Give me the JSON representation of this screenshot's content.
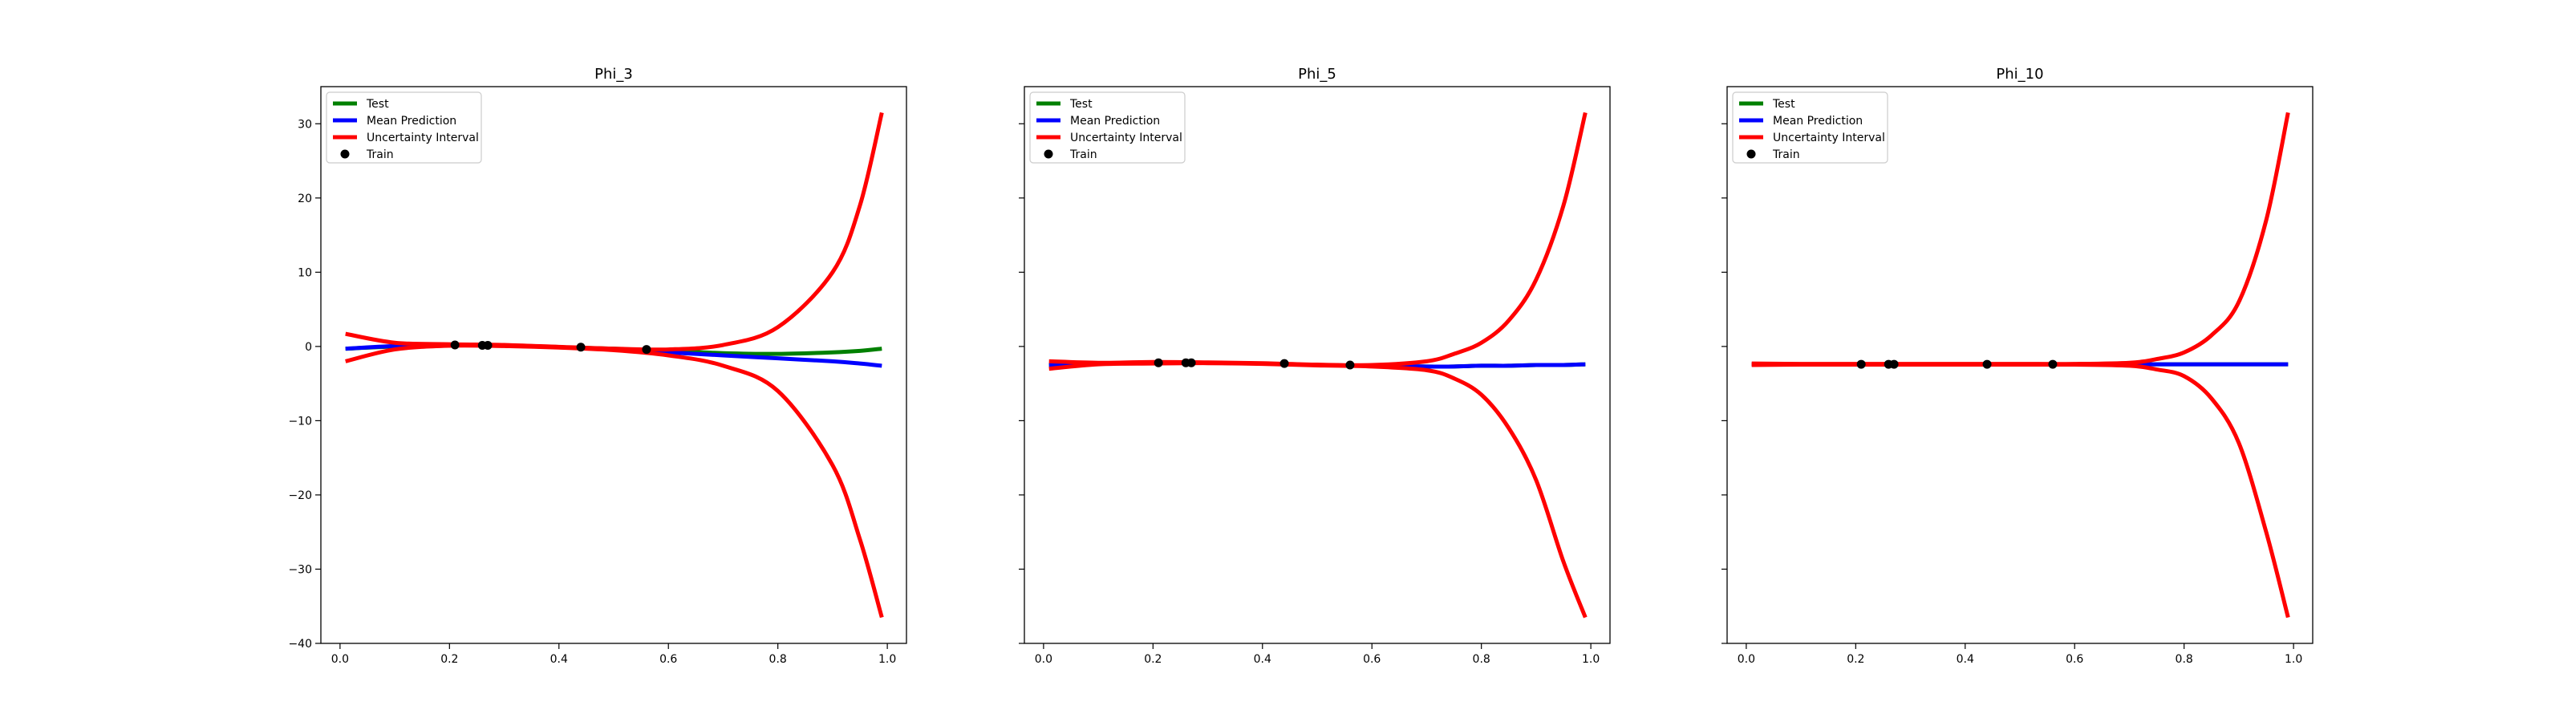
{
  "chart_data": [
    {
      "type": "line",
      "title": "Phi_3",
      "xlabel": "",
      "ylabel": "",
      "xlim": [
        -0.035,
        1.035
      ],
      "ylim": [
        -40,
        35
      ],
      "x_ticks": [
        0.0,
        0.2,
        0.4,
        0.6,
        0.8,
        1.0
      ],
      "y_ticks": [
        -40,
        -30,
        -20,
        -10,
        0,
        10,
        20,
        30
      ],
      "x_tick_labels": [
        "0.0",
        "0.2",
        "0.4",
        "0.6",
        "0.8",
        "1.0"
      ],
      "y_tick_labels": [
        "−40",
        "−30",
        "−20",
        "−10",
        "0",
        "10",
        "20",
        "30"
      ],
      "show_y_tick_labels": true,
      "legend_position": "top-left",
      "grid": false,
      "legend": [
        "Test",
        "Mean Prediction",
        "Uncertainty Interval",
        "Train"
      ],
      "x": [
        0.01,
        0.1,
        0.2,
        0.3,
        0.4,
        0.5,
        0.6,
        0.7,
        0.8,
        0.9,
        0.95,
        0.99
      ],
      "series": [
        {
          "name": "Test",
          "color": "#008000",
          "values": [
            -0.3,
            0.0,
            0.2,
            0.1,
            -0.1,
            -0.3,
            -0.6,
            -0.9,
            -1.0,
            -0.8,
            -0.6,
            -0.3
          ]
        },
        {
          "name": "Mean Prediction",
          "color": "#0000ff",
          "values": [
            -0.3,
            0.05,
            0.2,
            0.12,
            -0.1,
            -0.4,
            -0.8,
            -1.2,
            -1.6,
            -2.0,
            -2.3,
            -2.6
          ]
        },
        {
          "name": "Uncertainty Interval",
          "color": "#ff0000",
          "values": [
            1.7,
            0.5,
            0.3,
            0.2,
            -0.05,
            -0.3,
            -0.4,
            0.2,
            2.6,
            10.0,
            19.0,
            31.5
          ]
        },
        {
          "name": "Uncertainty Interval",
          "color": "#ff0000",
          "values": [
            -2.0,
            -0.4,
            0.1,
            0.05,
            -0.15,
            -0.5,
            -1.2,
            -2.6,
            -6.0,
            -16.0,
            -26.0,
            -36.5
          ]
        }
      ],
      "train_points": {
        "name": "Train",
        "color": "#000000",
        "x": [
          0.21,
          0.26,
          0.27,
          0.44,
          0.56
        ],
        "y": [
          0.2,
          0.15,
          0.15,
          -0.1,
          -0.4
        ]
      }
    },
    {
      "type": "line",
      "title": "Phi_5",
      "xlabel": "",
      "ylabel": "",
      "xlim": [
        -0.035,
        1.035
      ],
      "ylim": [
        -40,
        35
      ],
      "x_ticks": [
        0.0,
        0.2,
        0.4,
        0.6,
        0.8,
        1.0
      ],
      "y_ticks": [
        -40,
        -30,
        -20,
        -10,
        0,
        10,
        20,
        30
      ],
      "x_tick_labels": [
        "0.0",
        "0.2",
        "0.4",
        "0.6",
        "0.8",
        "1.0"
      ],
      "y_tick_labels": [
        "",
        "",
        "",
        "",
        "",
        "",
        "",
        ""
      ],
      "show_y_tick_labels": false,
      "legend_position": "top-left",
      "grid": false,
      "legend": [
        "Test",
        "Mean Prediction",
        "Uncertainty Interval",
        "Train"
      ],
      "x": [
        0.01,
        0.1,
        0.2,
        0.3,
        0.4,
        0.5,
        0.6,
        0.7,
        0.75,
        0.8,
        0.85,
        0.9,
        0.95,
        0.99
      ],
      "series": [
        {
          "name": "Test",
          "color": "#008000",
          "values": [
            -2.5,
            -2.3,
            -2.2,
            -2.2,
            -2.3,
            -2.5,
            -2.6,
            -2.7,
            -2.7,
            -2.6,
            -2.6,
            -2.5,
            -2.5,
            -2.4
          ]
        },
        {
          "name": "Mean Prediction",
          "color": "#0000ff",
          "values": [
            -2.5,
            -2.3,
            -2.2,
            -2.2,
            -2.3,
            -2.5,
            -2.6,
            -2.7,
            -2.7,
            -2.6,
            -2.6,
            -2.5,
            -2.5,
            -2.4
          ]
        },
        {
          "name": "Uncertainty Interval",
          "color": "#ff0000",
          "values": [
            -2.0,
            -2.2,
            -2.1,
            -2.15,
            -2.25,
            -2.45,
            -2.5,
            -2.0,
            -1.0,
            0.5,
            3.5,
            9.0,
            19.0,
            31.5
          ]
        },
        {
          "name": "Uncertainty Interval",
          "color": "#ff0000",
          "values": [
            -3.0,
            -2.4,
            -2.3,
            -2.25,
            -2.35,
            -2.55,
            -2.7,
            -3.2,
            -4.3,
            -6.5,
            -11.0,
            -18.0,
            -29.0,
            -36.5
          ]
        }
      ],
      "train_points": {
        "name": "Train",
        "color": "#000000",
        "x": [
          0.21,
          0.26,
          0.27,
          0.44,
          0.56
        ],
        "y": [
          -2.2,
          -2.2,
          -2.2,
          -2.3,
          -2.5
        ]
      }
    },
    {
      "type": "line",
      "title": "Phi_10",
      "xlabel": "",
      "ylabel": "",
      "xlim": [
        -0.035,
        1.035
      ],
      "ylim": [
        -40,
        35
      ],
      "x_ticks": [
        0.0,
        0.2,
        0.4,
        0.6,
        0.8,
        1.0
      ],
      "y_ticks": [
        -40,
        -30,
        -20,
        -10,
        0,
        10,
        20,
        30
      ],
      "x_tick_labels": [
        "0.0",
        "0.2",
        "0.4",
        "0.6",
        "0.8",
        "1.0"
      ],
      "y_tick_labels": [
        "",
        "",
        "",
        "",
        "",
        "",
        "",
        ""
      ],
      "show_y_tick_labels": false,
      "legend_position": "top-left",
      "grid": false,
      "legend": [
        "Test",
        "Mean Prediction",
        "Uncertainty Interval",
        "Train"
      ],
      "x": [
        0.01,
        0.1,
        0.2,
        0.3,
        0.4,
        0.5,
        0.6,
        0.7,
        0.75,
        0.8,
        0.85,
        0.9,
        0.95,
        0.99
      ],
      "series": [
        {
          "name": "Test",
          "color": "#008000",
          "values": [
            -2.4,
            -2.4,
            -2.4,
            -2.4,
            -2.4,
            -2.4,
            -2.4,
            -2.4,
            -2.4,
            -2.4,
            -2.4,
            -2.4,
            -2.4,
            -2.4
          ]
        },
        {
          "name": "Mean Prediction",
          "color": "#0000ff",
          "values": [
            -2.4,
            -2.4,
            -2.4,
            -2.4,
            -2.4,
            -2.4,
            -2.4,
            -2.4,
            -2.4,
            -2.4,
            -2.4,
            -2.4,
            -2.4,
            -2.4
          ]
        },
        {
          "name": "Uncertainty Interval",
          "color": "#ff0000",
          "values": [
            -2.3,
            -2.35,
            -2.35,
            -2.35,
            -2.35,
            -2.35,
            -2.35,
            -2.2,
            -1.7,
            -0.8,
            1.5,
            6.0,
            17.0,
            31.5
          ]
        },
        {
          "name": "Uncertainty Interval",
          "color": "#ff0000",
          "values": [
            -2.5,
            -2.45,
            -2.45,
            -2.45,
            -2.45,
            -2.45,
            -2.45,
            -2.6,
            -3.1,
            -4.0,
            -7.0,
            -13.0,
            -25.0,
            -36.5
          ]
        }
      ],
      "train_points": {
        "name": "Train",
        "color": "#000000",
        "x": [
          0.21,
          0.26,
          0.27,
          0.44,
          0.56
        ],
        "y": [
          -2.4,
          -2.4,
          -2.4,
          -2.4,
          -2.4
        ]
      }
    }
  ]
}
